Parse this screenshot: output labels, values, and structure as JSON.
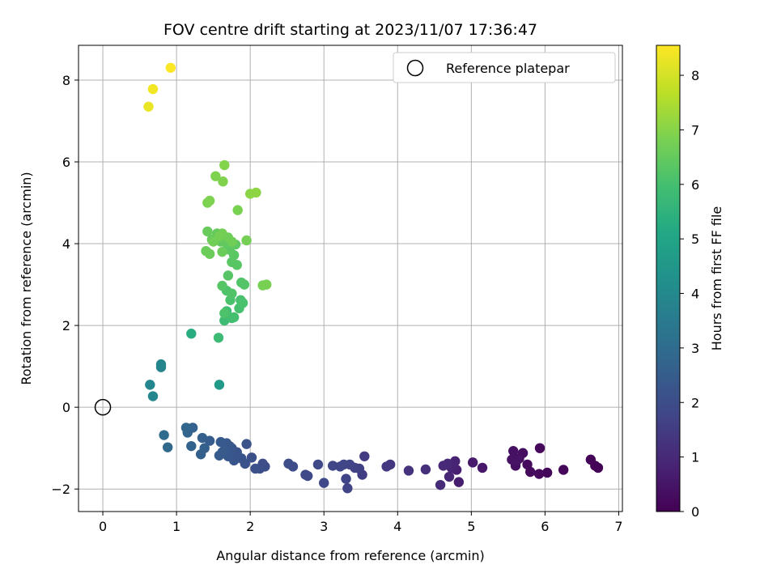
{
  "chart_data": {
    "type": "scatter",
    "title": "FOV centre drift starting at 2023/11/07 17:36:47",
    "xlabel": "Angular distance from reference (arcmin)",
    "ylabel": "Rotation from reference (arcmin)",
    "xlim": [
      -0.33,
      7.05
    ],
    "ylim": [
      -2.55,
      8.85
    ],
    "xticks": [
      0,
      1,
      2,
      3,
      4,
      5,
      6,
      7
    ],
    "yticks": [
      -2,
      0,
      2,
      4,
      6,
      8
    ],
    "grid": true,
    "legend": {
      "location": "upper right",
      "entries": [
        "Reference platepar"
      ]
    },
    "reference_point": {
      "name": "Reference platepar",
      "x": 0,
      "y": 0,
      "marker": "hollow-circle"
    },
    "colorbar": {
      "label": "Hours from first FF file",
      "colormap": "viridis",
      "range": [
        0,
        8.55
      ],
      "ticks": [
        0,
        1,
        2,
        3,
        4,
        5,
        6,
        7,
        8
      ]
    },
    "points_columns": [
      "x",
      "y",
      "hours"
    ],
    "points": [
      [
        6.72,
        -1.48,
        0.02
      ],
      [
        6.68,
        -1.43,
        0.05
      ],
      [
        6.62,
        -1.28,
        0.08
      ],
      [
        6.25,
        -1.53,
        0.12
      ],
      [
        6.03,
        -1.6,
        0.15
      ],
      [
        5.93,
        -1.0,
        0.18
      ],
      [
        5.92,
        -1.63,
        0.21
      ],
      [
        5.8,
        -1.58,
        0.24
      ],
      [
        5.76,
        -1.4,
        0.27
      ],
      [
        5.7,
        -1.12,
        0.3
      ],
      [
        5.65,
        -1.25,
        0.33
      ],
      [
        5.6,
        -1.43,
        0.36
      ],
      [
        5.57,
        -1.07,
        0.39
      ],
      [
        5.55,
        -1.28,
        0.42
      ],
      [
        5.62,
        -1.3,
        0.45
      ],
      [
        5.15,
        -1.48,
        0.55
      ],
      [
        5.02,
        -1.35,
        0.6
      ],
      [
        4.83,
        -1.83,
        0.7
      ],
      [
        4.8,
        -1.53,
        0.75
      ],
      [
        4.78,
        -1.32,
        0.8
      ],
      [
        4.73,
        -1.48,
        0.85
      ],
      [
        4.7,
        -1.7,
        0.9
      ],
      [
        4.68,
        -1.38,
        0.95
      ],
      [
        4.62,
        -1.43,
        1.0
      ],
      [
        4.58,
        -1.9,
        1.05
      ],
      [
        4.38,
        -1.52,
        1.15
      ],
      [
        4.15,
        -1.55,
        1.25
      ],
      [
        3.9,
        -1.4,
        1.35
      ],
      [
        3.85,
        -1.45,
        1.4
      ],
      [
        3.55,
        -1.2,
        1.5
      ],
      [
        3.52,
        -1.65,
        1.55
      ],
      [
        3.48,
        -1.5,
        1.6
      ],
      [
        3.42,
        -1.48,
        1.65
      ],
      [
        3.35,
        -1.4,
        1.7
      ],
      [
        3.32,
        -1.98,
        1.72
      ],
      [
        3.3,
        -1.75,
        1.75
      ],
      [
        3.27,
        -1.4,
        1.78
      ],
      [
        3.22,
        -1.45,
        1.8
      ],
      [
        3.12,
        -1.43,
        1.82
      ],
      [
        3.0,
        -1.85,
        1.85
      ],
      [
        2.92,
        -1.4,
        1.88
      ],
      [
        2.78,
        -1.68,
        1.9
      ],
      [
        2.75,
        -1.65,
        1.92
      ],
      [
        2.58,
        -1.45,
        1.95
      ],
      [
        2.52,
        -1.38,
        1.98
      ],
      [
        2.2,
        -1.45,
        2.0
      ],
      [
        2.17,
        -1.38,
        2.02
      ],
      [
        2.13,
        -1.5,
        2.05
      ],
      [
        2.07,
        -1.5,
        2.08
      ],
      [
        2.02,
        -1.23,
        2.1
      ],
      [
        1.95,
        -0.9,
        2.15
      ],
      [
        1.93,
        -1.38,
        2.18
      ],
      [
        1.88,
        -1.25,
        2.2
      ],
      [
        1.82,
        -1.1,
        2.22
      ],
      [
        1.78,
        -1.3,
        2.25
      ],
      [
        1.75,
        -1.0,
        2.28
      ],
      [
        1.72,
        -0.95,
        2.3
      ],
      [
        1.7,
        -1.2,
        2.32
      ],
      [
        1.68,
        -0.88,
        2.35
      ],
      [
        1.65,
        -1.05,
        2.38
      ],
      [
        1.62,
        -1.1,
        2.4
      ],
      [
        1.6,
        -0.85,
        2.42
      ],
      [
        1.58,
        -1.18,
        2.45
      ],
      [
        1.45,
        -0.82,
        2.5
      ],
      [
        1.38,
        -1.0,
        2.55
      ],
      [
        1.35,
        -0.75,
        2.58
      ],
      [
        1.33,
        -1.15,
        2.6
      ],
      [
        1.22,
        -0.5,
        2.65
      ],
      [
        1.2,
        -0.95,
        2.7
      ],
      [
        1.15,
        -0.62,
        2.75
      ],
      [
        1.13,
        -0.5,
        2.8
      ],
      [
        0.88,
        -0.98,
        2.9
      ],
      [
        0.83,
        -0.68,
        3.0
      ],
      [
        0.79,
        0.98,
        3.8
      ],
      [
        0.79,
        1.05,
        3.85
      ],
      [
        0.68,
        0.27,
        3.9
      ],
      [
        0.64,
        0.55,
        3.95
      ],
      [
        1.58,
        0.55,
        4.6
      ],
      [
        1.2,
        1.8,
        5.3
      ],
      [
        1.57,
        1.7,
        5.8
      ],
      [
        1.65,
        2.12,
        5.85
      ],
      [
        1.68,
        2.35,
        5.9
      ],
      [
        1.75,
        2.18,
        5.95
      ],
      [
        1.78,
        2.2,
        6.0
      ],
      [
        1.85,
        2.42,
        6.02
      ],
      [
        1.87,
        2.62,
        6.05
      ],
      [
        1.9,
        2.55,
        6.08
      ],
      [
        1.73,
        2.62,
        6.1
      ],
      [
        1.65,
        2.3,
        6.12
      ],
      [
        1.68,
        2.85,
        6.15
      ],
      [
        1.75,
        2.78,
        6.18
      ],
      [
        1.88,
        3.05,
        6.2
      ],
      [
        1.92,
        3.0,
        6.22
      ],
      [
        1.62,
        2.97,
        6.25
      ],
      [
        1.7,
        3.22,
        6.28
      ],
      [
        1.82,
        3.48,
        6.3
      ],
      [
        1.75,
        3.55,
        6.32
      ],
      [
        1.78,
        3.72,
        6.35
      ],
      [
        1.72,
        3.85,
        6.38
      ],
      [
        1.68,
        4.0,
        6.4
      ],
      [
        1.8,
        3.98,
        6.42
      ],
      [
        1.65,
        4.15,
        6.45
      ],
      [
        1.6,
        4.05,
        6.48
      ],
      [
        1.55,
        4.25,
        6.5
      ],
      [
        1.48,
        4.1,
        6.52
      ],
      [
        1.42,
        4.3,
        6.55
      ],
      [
        1.4,
        3.82,
        6.58
      ],
      [
        1.45,
        3.75,
        6.6
      ],
      [
        1.62,
        3.8,
        6.62
      ],
      [
        1.7,
        4.15,
        6.65
      ],
      [
        1.75,
        4.05,
        6.68
      ],
      [
        1.5,
        4.05,
        6.7
      ],
      [
        1.62,
        4.25,
        6.72
      ],
      [
        1.58,
        4.18,
        6.74
      ],
      [
        1.95,
        4.08,
        6.75
      ],
      [
        2.17,
        2.98,
        6.78
      ],
      [
        2.22,
        3.0,
        6.8
      ],
      [
        1.83,
        4.82,
        6.82
      ],
      [
        1.42,
        5.0,
        6.85
      ],
      [
        1.45,
        5.05,
        6.88
      ],
      [
        1.53,
        5.65,
        6.9
      ],
      [
        1.63,
        5.52,
        6.92
      ],
      [
        1.65,
        5.92,
        6.95
      ],
      [
        2.0,
        5.22,
        7.05
      ],
      [
        2.08,
        5.25,
        7.1
      ],
      [
        0.62,
        7.35,
        8.3
      ],
      [
        0.68,
        7.78,
        8.4
      ],
      [
        0.92,
        8.3,
        8.52
      ]
    ]
  }
}
